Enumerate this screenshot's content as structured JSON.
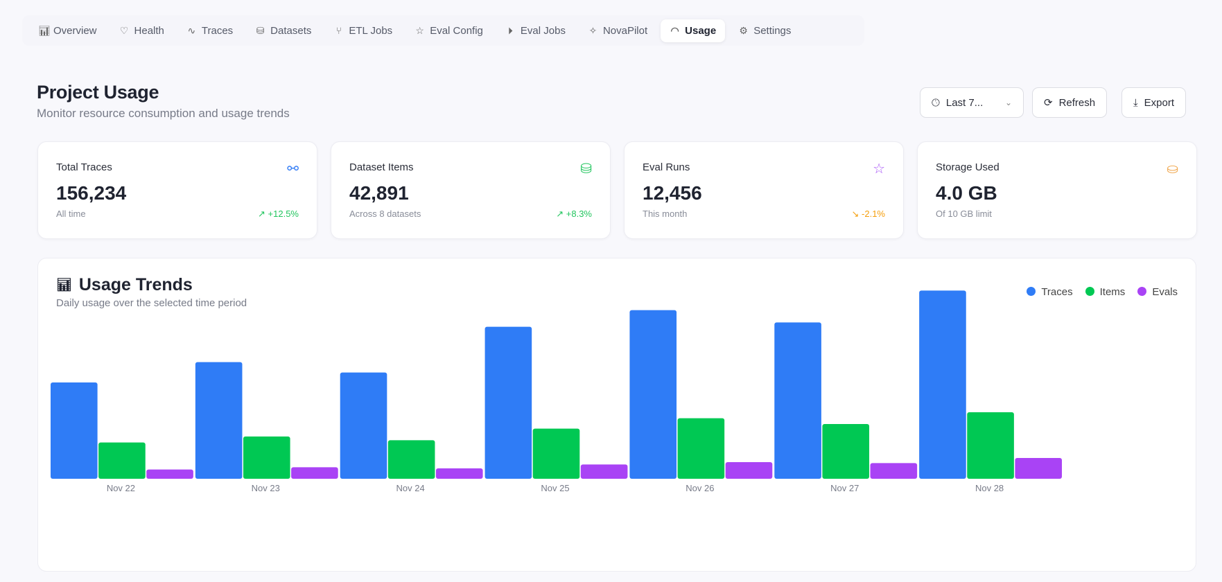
{
  "nav": [
    {
      "label": "Overview",
      "icon": "bar-chart-icon",
      "glyph": "📊"
    },
    {
      "label": "Health",
      "icon": "heart-icon",
      "glyph": "♡"
    },
    {
      "label": "Traces",
      "icon": "activity-icon",
      "glyph": "∿"
    },
    {
      "label": "Datasets",
      "icon": "database-icon",
      "glyph": "⛁"
    },
    {
      "label": "ETL Jobs",
      "icon": "git-branch-icon",
      "glyph": "⑂"
    },
    {
      "label": "Eval Config",
      "icon": "star-icon",
      "glyph": "☆"
    },
    {
      "label": "Eval Jobs",
      "icon": "play-circle-icon",
      "glyph": "⏵"
    },
    {
      "label": "NovaPilot",
      "icon": "sparkles-icon",
      "glyph": "✧"
    },
    {
      "label": "Usage",
      "icon": "gauge-icon",
      "glyph": "◠",
      "active": true
    },
    {
      "label": "Settings",
      "icon": "gear-icon",
      "glyph": "⚙"
    }
  ],
  "header": {
    "title": "Project Usage",
    "subtitle": "Monitor resource consumption and usage trends",
    "range_select": "Last 7...",
    "refresh": "Refresh",
    "export": "Export"
  },
  "cards": [
    {
      "label": "Total Traces",
      "value": "156,234",
      "note": "All time",
      "change": "↗ +12.5%",
      "change_color": "#22c55e",
      "icon": "workflow-icon",
      "glyph": "⚯",
      "icon_color": "#3b82f6"
    },
    {
      "label": "Dataset Items",
      "value": "42,891",
      "note": "Across 8 datasets",
      "change": "↗ +8.3%",
      "change_color": "#22c55e",
      "icon": "database-icon",
      "glyph": "⛁",
      "icon_color": "#22c55e"
    },
    {
      "label": "Eval Runs",
      "value": "12,456",
      "note": "This month",
      "change": "↘ -2.1%",
      "change_color": "#f59e0b",
      "icon": "star-icon",
      "glyph": "☆",
      "icon_color": "#a855f7"
    },
    {
      "label": "Storage Used",
      "value": "4.0 GB",
      "note": "Of 10 GB limit",
      "change": "",
      "change_color": "#f59e0b",
      "icon": "hard-drive-icon",
      "glyph": "⛀",
      "icon_color": "#f0a54a"
    }
  ],
  "chart_data": {
    "type": "bar",
    "title": "Usage Trends",
    "subtitle": "Daily usage over the selected time period",
    "categories": [
      "Nov 22",
      "Nov 23",
      "Nov 24",
      "Nov 25",
      "Nov 26",
      "Nov 27",
      "Nov 28"
    ],
    "series": [
      {
        "name": "Traces",
        "color": "#2f7cf6",
        "values": [
          417,
          505,
          460,
          658,
          730,
          677,
          815
        ]
      },
      {
        "name": "Items",
        "color": "#00c853",
        "values": [
          157,
          183,
          167,
          217,
          262,
          237,
          288
        ]
      },
      {
        "name": "Evals",
        "color": "#a943f5",
        "values": [
          40,
          50,
          45,
          62,
          72,
          68,
          90
        ]
      }
    ],
    "ylim": [
      0,
      900
    ],
    "grid": false,
    "legend": "top-right"
  }
}
